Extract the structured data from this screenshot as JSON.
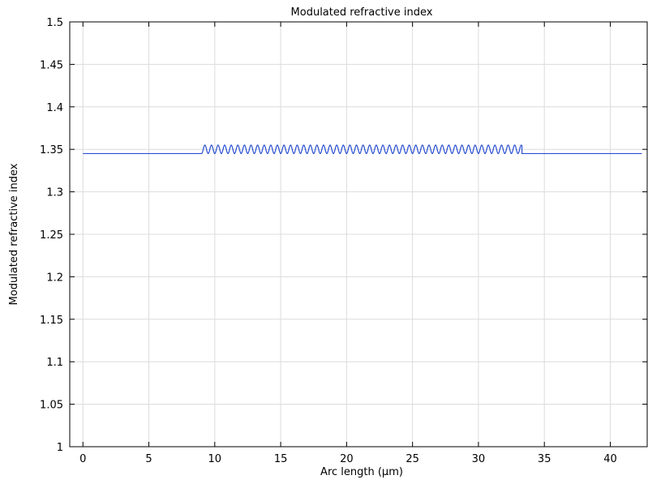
{
  "chart_data": {
    "type": "line",
    "title": "Modulated refractive index",
    "xlabel": "Arc length (µm)",
    "ylabel": "Modulated refractive index",
    "xlim": [
      -1,
      42.8
    ],
    "ylim": [
      1,
      1.5
    ],
    "grid": true,
    "legend": "none",
    "x_ticks": [
      0,
      5,
      10,
      15,
      20,
      25,
      30,
      35,
      40
    ],
    "x_tick_labels": [
      "0",
      "5",
      "10",
      "15",
      "20",
      "25",
      "30",
      "35",
      "40"
    ],
    "y_ticks": [
      1,
      1.05,
      1.1,
      1.15,
      1.2,
      1.25,
      1.3,
      1.35,
      1.4,
      1.45,
      1.5
    ],
    "y_tick_labels": [
      "1",
      "1.05",
      "1.1",
      "1.15",
      "1.2",
      "1.25",
      "1.3",
      "1.35",
      "1.4",
      "1.45",
      "1.5"
    ],
    "series": [
      {
        "color": "#2b4fd1",
        "baseline": 1.345,
        "peak": 1.355,
        "grating_start": 9.0,
        "grating_end": 33.3,
        "grating_period": 0.5,
        "x_start": 0,
        "x_end": 42.4
      }
    ],
    "colors": {
      "line": "#2b4fd1",
      "grid": "#dcdcdc",
      "axis": "#000000"
    }
  }
}
